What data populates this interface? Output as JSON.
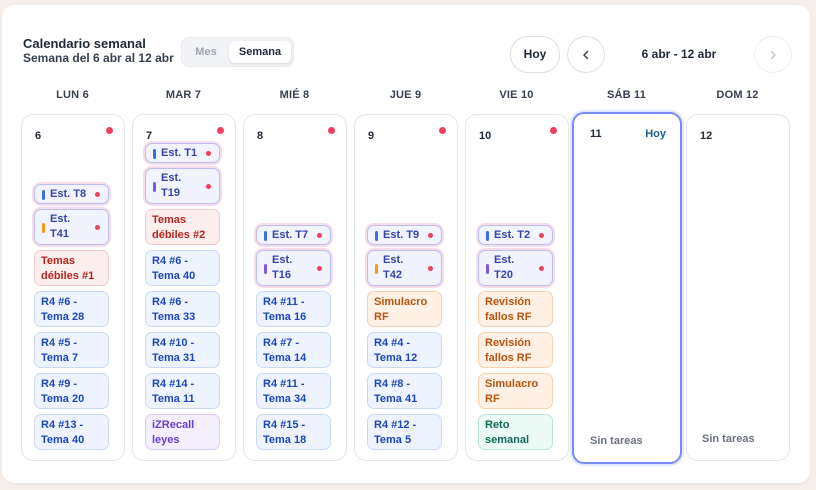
{
  "header": {
    "title": "Calendario semanal",
    "subtitle": "Semana del 6 abr al 12 abr",
    "view_mes": "Mes",
    "view_semana": "Semana",
    "today_button": "Hoy",
    "range": "6 abr - 12 abr",
    "prev_icon": "chevron-left-icon",
    "next_icon": "chevron-right-icon"
  },
  "days": [
    {
      "label": "LUN 6",
      "num": "6",
      "dot": true,
      "today": false,
      "empty": ""
    },
    {
      "label": "MAR 7",
      "num": "7",
      "dot": true,
      "today": false,
      "empty": ""
    },
    {
      "label": "MIÉ 8",
      "num": "8",
      "dot": true,
      "today": false,
      "empty": ""
    },
    {
      "label": "JUE 9",
      "num": "9",
      "dot": true,
      "today": false,
      "empty": ""
    },
    {
      "label": "VIE 10",
      "num": "10",
      "dot": true,
      "today": false,
      "empty": ""
    },
    {
      "label": "SÁB 11",
      "num": "11",
      "dot": false,
      "today": true,
      "today_label": "Hoy",
      "empty": "Sin tareas"
    },
    {
      "label": "DOM 12",
      "num": "12",
      "dot": false,
      "today": false,
      "empty": "Sin tareas"
    }
  ],
  "tasks": [
    {
      "day": 0,
      "style": "est",
      "text": "Est. T8",
      "bar": "blue"
    },
    {
      "day": 0,
      "style": "est",
      "text": "Est.\nT41",
      "bar": "orange"
    },
    {
      "day": 0,
      "style": "red",
      "text": "Temas\ndébiles #1"
    },
    {
      "day": 0,
      "style": "blue",
      "text": "R4 #6 -\nTema 28"
    },
    {
      "day": 0,
      "style": "blue",
      "text": "R4 #5 -\nTema 7"
    },
    {
      "day": 0,
      "style": "blue",
      "text": "R4 #9 -\nTema 20"
    },
    {
      "day": 0,
      "style": "blue",
      "text": "R4 #13 -\nTema 40"
    },
    {
      "day": 1,
      "style": "est",
      "text": "Est. T1",
      "bar": "blue"
    },
    {
      "day": 1,
      "style": "est",
      "text": "Est.\nT19",
      "bar": "purple"
    },
    {
      "day": 1,
      "style": "red",
      "text": "Temas\ndébiles #2"
    },
    {
      "day": 1,
      "style": "blue",
      "text": "R4 #6 -\nTema 40"
    },
    {
      "day": 1,
      "style": "blue",
      "text": "R4 #6 -\nTema 33"
    },
    {
      "day": 1,
      "style": "blue",
      "text": "R4 #10 -\nTema 31"
    },
    {
      "day": 1,
      "style": "blue",
      "text": "R4 #14 -\nTema 11"
    },
    {
      "day": 1,
      "style": "violet",
      "text": "iZRecall\nleyes"
    },
    {
      "day": 2,
      "style": "est",
      "text": "Est. T7",
      "bar": "blue"
    },
    {
      "day": 2,
      "style": "est",
      "text": "Est.\nT16",
      "bar": "purple"
    },
    {
      "day": 2,
      "style": "blue",
      "text": "R4 #11 -\nTema 16"
    },
    {
      "day": 2,
      "style": "blue",
      "text": "R4 #7 -\nTema 14"
    },
    {
      "day": 2,
      "style": "blue",
      "text": "R4 #11 -\nTema 34"
    },
    {
      "day": 2,
      "style": "blue",
      "text": "R4 #15 -\nTema 18"
    },
    {
      "day": 3,
      "style": "est",
      "text": "Est. T9",
      "bar": "blue"
    },
    {
      "day": 3,
      "style": "est",
      "text": "Est.\nT42",
      "bar": "orange"
    },
    {
      "day": 3,
      "style": "orange",
      "text": "Simulacro\nRF"
    },
    {
      "day": 3,
      "style": "blue",
      "text": "R4 #4 -\nTema 12"
    },
    {
      "day": 3,
      "style": "blue",
      "text": "R4 #8 -\nTema 41"
    },
    {
      "day": 3,
      "style": "blue",
      "text": "R4 #12 -\nTema 5"
    },
    {
      "day": 4,
      "style": "est",
      "text": "Est. T2",
      "bar": "blue"
    },
    {
      "day": 4,
      "style": "est",
      "text": "Est.\nT20",
      "bar": "purple"
    },
    {
      "day": 4,
      "style": "orange",
      "text": "Revisión\nfallos RF"
    },
    {
      "day": 4,
      "style": "orange",
      "text": "Revisión\nfallos RF"
    },
    {
      "day": 4,
      "style": "orange",
      "text": "Simulacro\nRF"
    },
    {
      "day": 4,
      "style": "teal",
      "text": "Reto\nsemanal"
    }
  ]
}
